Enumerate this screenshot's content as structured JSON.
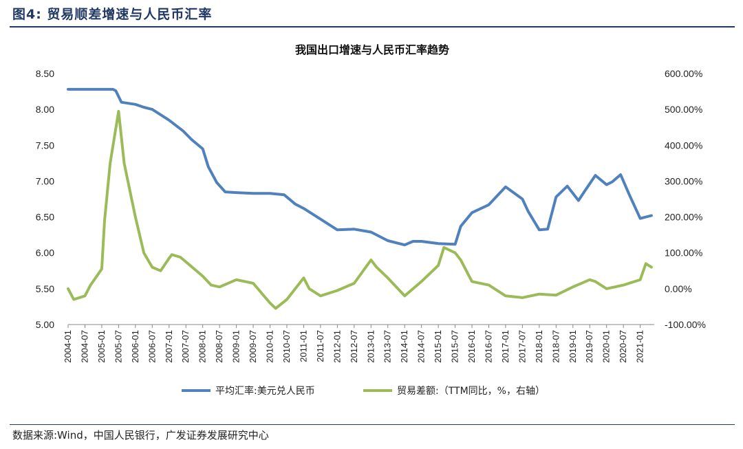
{
  "figure_title": "图4: 贸易顺差增速与人民币汇率",
  "source": "数据来源:Wind，中国人民银行，广发证券发展研究中心",
  "chart_data": {
    "type": "line",
    "title": "我国出口增速与人民币汇率趋势",
    "x": [
      "2004-01",
      "2004-07",
      "2005-01",
      "2005-07",
      "2006-01",
      "2006-07",
      "2007-01",
      "2007-07",
      "2008-01",
      "2008-07",
      "2009-01",
      "2009-07",
      "2010-01",
      "2010-07",
      "2011-01",
      "2011-07",
      "2012-01",
      "2012-07",
      "2013-01",
      "2013-07",
      "2014-01",
      "2014-07",
      "2015-01",
      "2015-07",
      "2016-01",
      "2016-07",
      "2017-01",
      "2017-07",
      "2018-01",
      "2018-07",
      "2019-01",
      "2019-07",
      "2020-01",
      "2020-07",
      "2021-01"
    ],
    "y_left": {
      "ylim": [
        5.0,
        8.5
      ],
      "ticks": [
        "8.50",
        "8.00",
        "7.50",
        "7.00",
        "6.50",
        "6.00",
        "5.50",
        "5.00"
      ]
    },
    "y_right": {
      "ylim": [
        -100,
        600
      ],
      "ticks": [
        "600.00%",
        "500.00%",
        "400.00%",
        "300.00%",
        "200.00%",
        "100.00%",
        "0.00%",
        "-100.00%"
      ]
    },
    "legend_position": "bottom",
    "series": [
      {
        "name": "平均汇率:美元兑人民币",
        "axis": "left",
        "color": "#4f81bd",
        "points": [
          [
            "2004-01",
            8.28
          ],
          [
            "2005-05",
            8.28
          ],
          [
            "2005-06",
            8.26
          ],
          [
            "2005-08",
            8.1
          ],
          [
            "2006-01",
            8.07
          ],
          [
            "2006-04",
            8.03
          ],
          [
            "2006-07",
            8.0
          ],
          [
            "2007-01",
            7.85
          ],
          [
            "2007-06",
            7.7
          ],
          [
            "2007-09",
            7.58
          ],
          [
            "2008-01",
            7.45
          ],
          [
            "2008-03",
            7.2
          ],
          [
            "2008-06",
            6.98
          ],
          [
            "2008-09",
            6.85
          ],
          [
            "2009-01",
            6.84
          ],
          [
            "2009-07",
            6.83
          ],
          [
            "2010-01",
            6.83
          ],
          [
            "2010-06",
            6.81
          ],
          [
            "2010-10",
            6.68
          ],
          [
            "2011-01",
            6.62
          ],
          [
            "2011-07",
            6.47
          ],
          [
            "2012-01",
            6.32
          ],
          [
            "2012-07",
            6.33
          ],
          [
            "2013-01",
            6.29
          ],
          [
            "2013-07",
            6.17
          ],
          [
            "2014-01",
            6.11
          ],
          [
            "2014-04",
            6.16
          ],
          [
            "2014-07",
            6.16
          ],
          [
            "2015-01",
            6.13
          ],
          [
            "2015-07",
            6.12
          ],
          [
            "2015-09",
            6.37
          ],
          [
            "2016-01",
            6.56
          ],
          [
            "2016-07",
            6.67
          ],
          [
            "2017-01",
            6.92
          ],
          [
            "2017-07",
            6.75
          ],
          [
            "2017-09",
            6.58
          ],
          [
            "2018-01",
            6.32
          ],
          [
            "2018-04",
            6.33
          ],
          [
            "2018-07",
            6.78
          ],
          [
            "2018-11",
            6.93
          ],
          [
            "2019-03",
            6.73
          ],
          [
            "2019-05",
            6.85
          ],
          [
            "2019-09",
            7.08
          ],
          [
            "2020-01",
            6.95
          ],
          [
            "2020-03",
            6.99
          ],
          [
            "2020-06",
            7.09
          ],
          [
            "2020-09",
            6.82
          ],
          [
            "2021-01",
            6.48
          ],
          [
            "2021-05",
            6.52
          ]
        ]
      },
      {
        "name": "贸易差额:（TTM同比，%，右轴）",
        "axis": "right",
        "color": "#9bbb59",
        "points": [
          [
            "2004-01",
            0
          ],
          [
            "2004-03",
            -30
          ],
          [
            "2004-07",
            -20
          ],
          [
            "2004-09",
            10
          ],
          [
            "2005-01",
            55
          ],
          [
            "2005-02",
            190
          ],
          [
            "2005-04",
            350
          ],
          [
            "2005-07",
            495
          ],
          [
            "2005-09",
            350
          ],
          [
            "2006-01",
            200
          ],
          [
            "2006-04",
            100
          ],
          [
            "2006-07",
            60
          ],
          [
            "2006-10",
            50
          ],
          [
            "2007-01",
            85
          ],
          [
            "2007-02",
            95
          ],
          [
            "2007-05",
            88
          ],
          [
            "2007-07",
            75
          ],
          [
            "2008-01",
            35
          ],
          [
            "2008-04",
            10
          ],
          [
            "2008-07",
            5
          ],
          [
            "2009-01",
            25
          ],
          [
            "2009-07",
            15
          ],
          [
            "2010-01",
            -40
          ],
          [
            "2010-03",
            -55
          ],
          [
            "2010-07",
            -30
          ],
          [
            "2011-01",
            30
          ],
          [
            "2011-03",
            0
          ],
          [
            "2011-07",
            -20
          ],
          [
            "2012-01",
            -5
          ],
          [
            "2012-07",
            15
          ],
          [
            "2013-01",
            80
          ],
          [
            "2013-03",
            60
          ],
          [
            "2013-07",
            30
          ],
          [
            "2014-01",
            -20
          ],
          [
            "2014-07",
            20
          ],
          [
            "2015-01",
            65
          ],
          [
            "2015-03",
            115
          ],
          [
            "2015-07",
            100
          ],
          [
            "2015-09",
            80
          ],
          [
            "2016-01",
            20
          ],
          [
            "2016-07",
            10
          ],
          [
            "2017-01",
            -20
          ],
          [
            "2017-07",
            -25
          ],
          [
            "2018-01",
            -15
          ],
          [
            "2018-07",
            -18
          ],
          [
            "2019-01",
            5
          ],
          [
            "2019-07",
            25
          ],
          [
            "2019-09",
            20
          ],
          [
            "2020-01",
            0
          ],
          [
            "2020-07",
            10
          ],
          [
            "2021-01",
            25
          ],
          [
            "2021-03",
            70
          ],
          [
            "2021-05",
            60
          ]
        ]
      }
    ]
  }
}
